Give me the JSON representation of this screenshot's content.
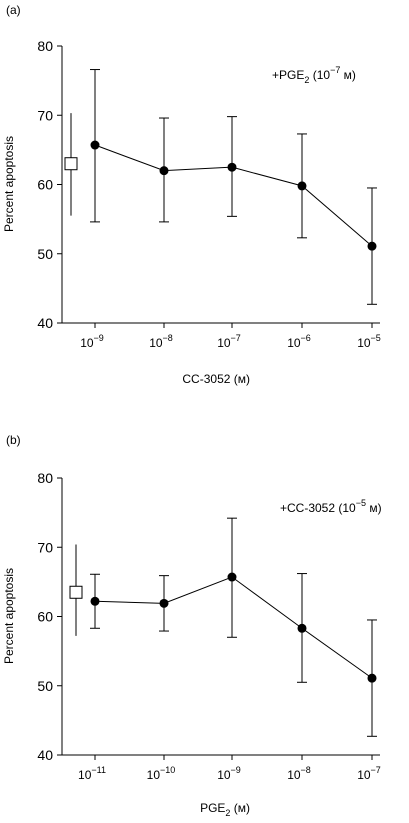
{
  "chart_data": [
    {
      "type": "scatter",
      "panel_label": "(a)",
      "annotation": {
        "prefix": "+PGE",
        "sub": "2",
        "mid": " (10",
        "sup": "−7",
        "suffix": " м)"
      },
      "xlabel": {
        "text": "CC-3052 (м)",
        "sub": ""
      },
      "ylabel": "Percent apoptosis",
      "ylim": [
        40,
        80
      ],
      "yticks": [
        "40",
        "50",
        "60",
        "70",
        "80"
      ],
      "xticks": [
        {
          "base": "10",
          "exp": "−9"
        },
        {
          "base": "10",
          "exp": "−8"
        },
        {
          "base": "10",
          "exp": "−7"
        },
        {
          "base": "10",
          "exp": "−6"
        },
        {
          "base": "10",
          "exp": "−5"
        }
      ],
      "control": {
        "y": 63,
        "lower": 55.5,
        "upper": 70.3
      },
      "series": [
        {
          "values": [
            65.7,
            62.0,
            62.5,
            59.8,
            51.1
          ],
          "lower": [
            54.6,
            54.6,
            55.4,
            52.3,
            42.7
          ],
          "upper": [
            76.6,
            69.6,
            69.8,
            67.3,
            59.5
          ]
        }
      ]
    },
    {
      "type": "scatter",
      "panel_label": "(b)",
      "annotation": {
        "prefix": "+CC-3052",
        "sub": "",
        "mid": " (10",
        "sup": "−5",
        "suffix": " м)"
      },
      "xlabel": {
        "text": "PGE",
        "sub": "2",
        "rest": " (м)"
      },
      "ylabel": "Percent apoptosis",
      "ylim": [
        40,
        80
      ],
      "yticks": [
        "40",
        "50",
        "60",
        "70",
        "80"
      ],
      "xticks": [
        {
          "base": "10",
          "exp": "−11"
        },
        {
          "base": "10",
          "exp": "−10"
        },
        {
          "base": "10",
          "exp": "−9"
        },
        {
          "base": "10",
          "exp": "−8"
        },
        {
          "base": "10",
          "exp": "−7"
        }
      ],
      "control": {
        "y": 63.5,
        "lower": 57.2,
        "upper": 70.4
      },
      "series": [
        {
          "values": [
            62.2,
            61.9,
            65.7,
            58.3,
            51.1
          ],
          "lower": [
            58.3,
            57.9,
            57.0,
            50.5,
            42.7
          ],
          "upper": [
            66.1,
            65.9,
            74.2,
            66.2,
            59.5
          ]
        }
      ]
    }
  ]
}
